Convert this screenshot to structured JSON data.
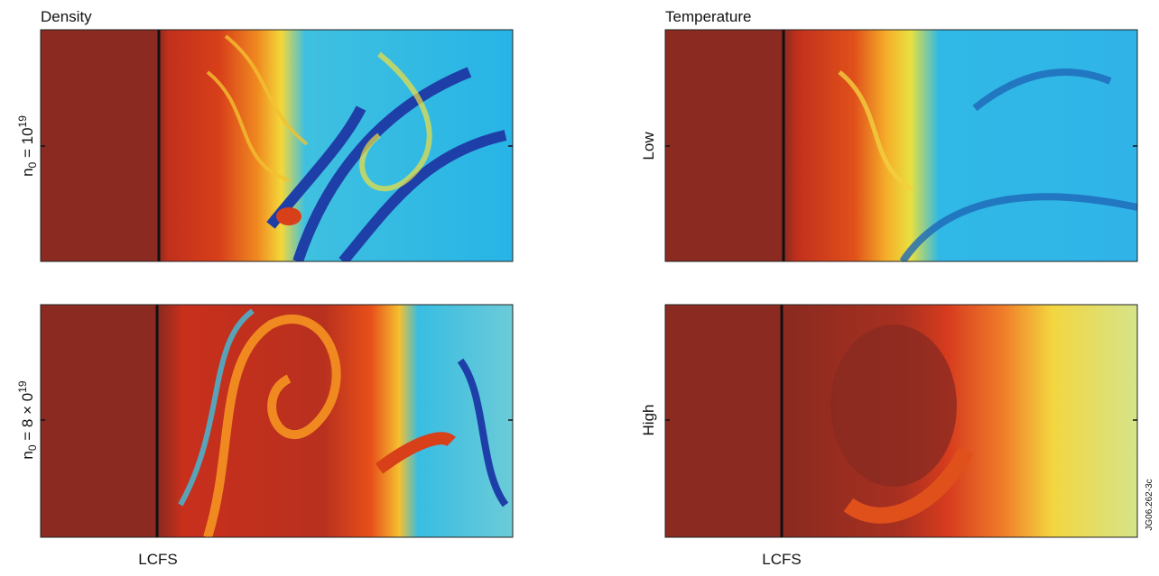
{
  "columns": [
    {
      "title": "Density",
      "lcfs": "LCFS"
    },
    {
      "title": "Temperature",
      "lcfs": "LCFS"
    }
  ],
  "row_labels_left": [
    {
      "n": "n",
      "sub": "0",
      "eq": " = 10",
      "sup": "19"
    },
    {
      "n": "n",
      "sub": "0",
      "eq": " = 8 × 0",
      "sup": "19"
    }
  ],
  "row_labels_right": [
    "Low",
    "High"
  ],
  "figure_code": "JG06.262-3c"
}
